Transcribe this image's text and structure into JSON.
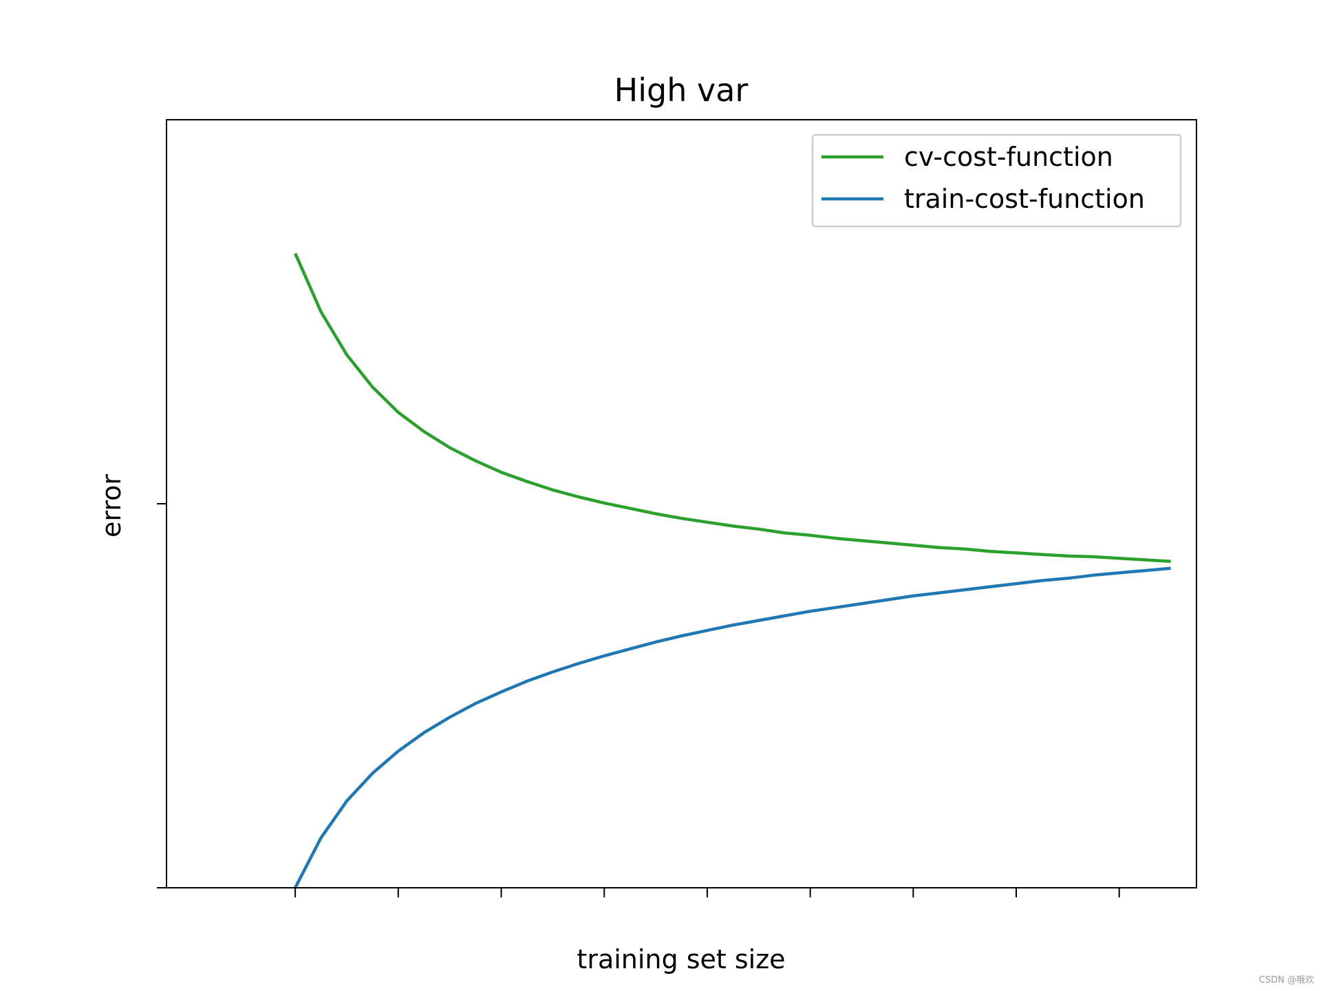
{
  "chart_data": {
    "type": "line",
    "title": "High var",
    "xlabel": "training set size",
    "ylabel": "error",
    "xlim": [
      -5,
      35
    ],
    "ylim": [
      0,
      1
    ],
    "x_ticks": [
      0,
      4,
      8,
      12,
      16,
      20,
      24,
      28,
      32
    ],
    "y_ticks": [
      0,
      0.5
    ],
    "tick_labels_shown": false,
    "grid": false,
    "legend_position": "top-right",
    "series": [
      {
        "name": "cv-cost-function",
        "color": "#2ca02c",
        "x": [
          0,
          1,
          2,
          3,
          4,
          5,
          6,
          7,
          8,
          9,
          10,
          11,
          12,
          13,
          14,
          15,
          16,
          17,
          18,
          19,
          20,
          21,
          22,
          23,
          24,
          25,
          26,
          27,
          28,
          29,
          30,
          31,
          32,
          33,
          34
        ],
        "y": [
          0.826,
          0.75,
          0.694,
          0.652,
          0.619,
          0.594,
          0.573,
          0.556,
          0.541,
          0.529,
          0.518,
          0.509,
          0.501,
          0.494,
          0.487,
          0.481,
          0.476,
          0.471,
          0.467,
          0.462,
          0.459,
          0.455,
          0.452,
          0.449,
          0.446,
          0.443,
          0.441,
          0.438,
          0.436,
          0.434,
          0.432,
          0.431,
          0.429,
          0.427,
          0.425
        ]
      },
      {
        "name": "train-cost-function",
        "color": "#1f77b4",
        "x": [
          0,
          1,
          2,
          3,
          4,
          5,
          6,
          7,
          8,
          9,
          10,
          11,
          12,
          13,
          14,
          15,
          16,
          17,
          18,
          19,
          20,
          21,
          22,
          23,
          24,
          25,
          26,
          27,
          28,
          29,
          30,
          31,
          32,
          33,
          34
        ],
        "y": [
          0.0,
          0.065,
          0.113,
          0.149,
          0.178,
          0.202,
          0.222,
          0.24,
          0.255,
          0.269,
          0.281,
          0.292,
          0.302,
          0.311,
          0.32,
          0.328,
          0.335,
          0.342,
          0.348,
          0.354,
          0.36,
          0.365,
          0.37,
          0.375,
          0.38,
          0.384,
          0.388,
          0.392,
          0.396,
          0.4,
          0.403,
          0.407,
          0.41,
          0.413,
          0.416
        ]
      }
    ]
  },
  "watermark": "CSDN @哦欢"
}
